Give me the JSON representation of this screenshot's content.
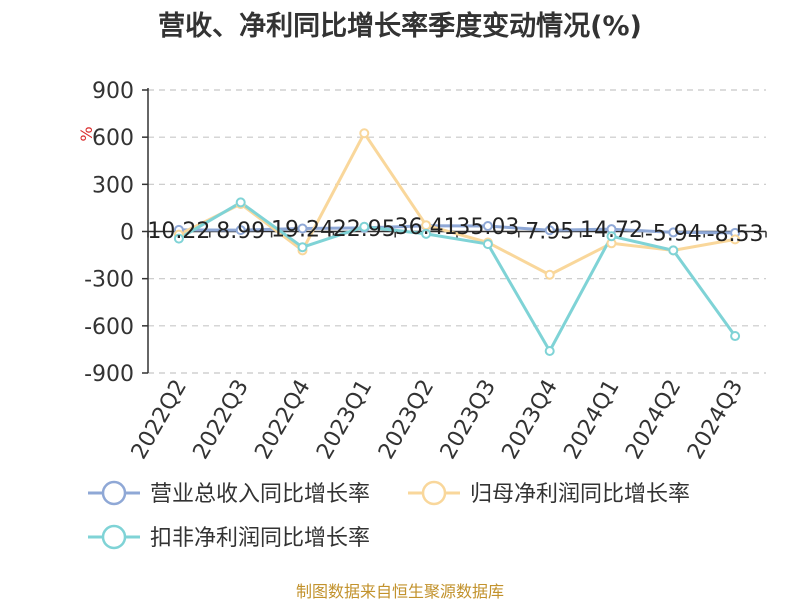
{
  "title": "营收、净利同比增长率季度变动情况(%)",
  "source": "制图数据来自恒生聚源数据库",
  "chart_data": {
    "type": "line",
    "ylabel": "%",
    "ylim": [
      -900,
      900
    ],
    "yticks": [
      900,
      600,
      300,
      0,
      -300,
      -600,
      -900
    ],
    "grid": true,
    "legend_position": "bottom",
    "categories": [
      "2022Q2",
      "2022Q3",
      "2022Q4",
      "2023Q1",
      "2023Q2",
      "2023Q3",
      "2023Q4",
      "2024Q1",
      "2024Q2",
      "2024Q3"
    ],
    "series": [
      {
        "name": "营业总收入同比增长率",
        "color": "#8fa8d6",
        "values": [
          10.22,
          8.99,
          19.24,
          22.95,
          36.41,
          35.03,
          7.95,
          14.72,
          -5.94,
          -8.53
        ],
        "labels": [
          "10.22",
          "8.99",
          "19.24",
          "22.95",
          "36.41",
          "35.03",
          "7.95",
          "14.72",
          "-5.94",
          "-8.53"
        ]
      },
      {
        "name": "归母净利润同比增长率",
        "color": "#f9d79b",
        "values": [
          -20,
          175,
          -120,
          625,
          40,
          -70,
          -275,
          -75,
          -120,
          -50
        ]
      },
      {
        "name": "扣非净利润同比增长率",
        "color": "#7fd3d6",
        "values": [
          -45,
          185,
          -100,
          30,
          -15,
          -80,
          -760,
          -30,
          -120,
          -665
        ]
      }
    ]
  }
}
